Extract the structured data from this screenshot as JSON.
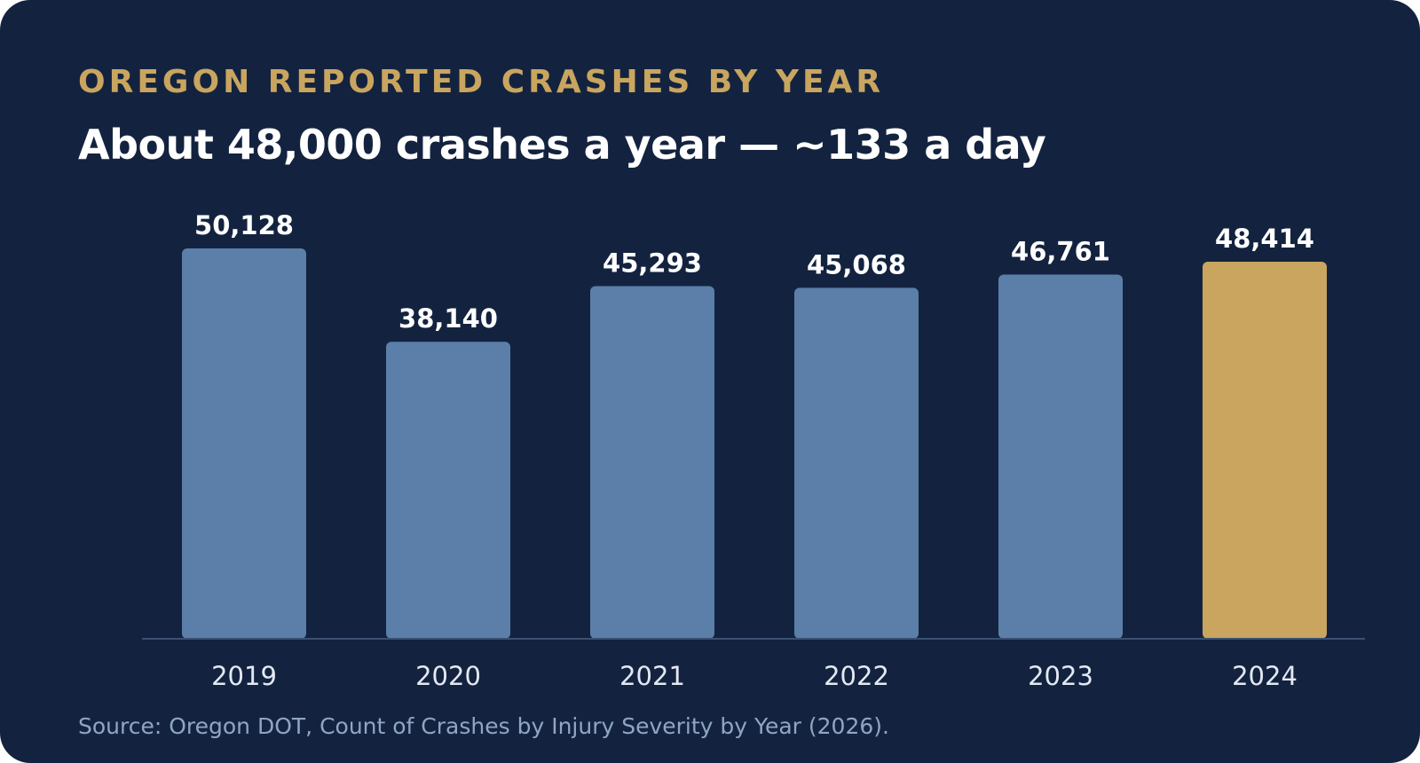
{
  "header": {
    "eyebrow": "OREGON REPORTED CRASHES BY YEAR",
    "headline": "About 48,000 crashes a year — ~133 a day"
  },
  "footer": {
    "source": "Source: Oregon DOT, Count of Crashes by Injury Severity by Year (2026)."
  },
  "colors": {
    "background": "#13233f",
    "bar": "#5b7fa8",
    "highlight_bar": "#c9a55f",
    "eyebrow": "#c9a55f",
    "baseline": "#3b4f72",
    "label": "#ffffff",
    "tick": "#e3e9f2",
    "source": "#8fa5c6"
  },
  "chart_data": {
    "type": "bar",
    "categories": [
      "2019",
      "2020",
      "2021",
      "2022",
      "2023",
      "2024"
    ],
    "values": [
      50128,
      38140,
      45293,
      45068,
      46761,
      48414
    ],
    "value_labels": [
      "50,128",
      "38,140",
      "45,293",
      "45,068",
      "46,761",
      "48,414"
    ],
    "highlight_category": "2024",
    "ylim": [
      0,
      50128
    ],
    "grid": false,
    "legend": "none"
  }
}
